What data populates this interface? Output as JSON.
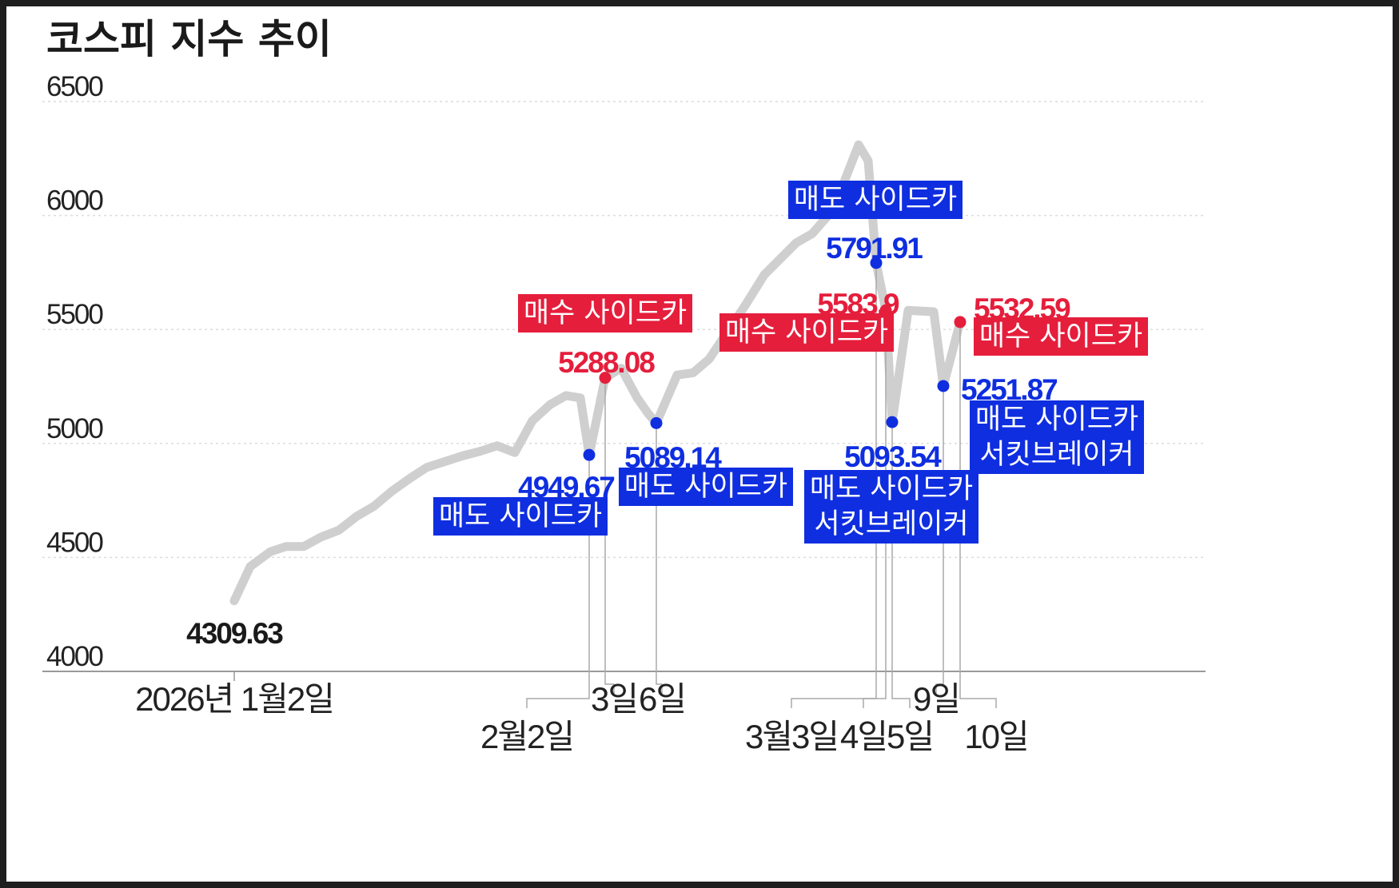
{
  "chart_data": {
    "type": "line",
    "title": "코스피 지수 추이",
    "ylim": [
      4000,
      6500
    ],
    "yticks": [
      "6500",
      "6000",
      "5500",
      "5000",
      "4500",
      "4000"
    ],
    "grid": true,
    "colors": {
      "line": "#cfcfcf",
      "sell": "#0f2ee0",
      "buy": "#e51e3c",
      "start": "#1a1a1a"
    },
    "series": [
      {
        "name": "코스피",
        "values": [
          4309.63,
          4460,
          4525,
          4548,
          4548,
          4590,
          4620,
          4680,
          4725,
          4790,
          4845,
          4895,
          4920,
          4945,
          4965,
          4990,
          4960,
          5100,
          5170,
          5210,
          5200,
          4949.67,
          5288.08,
          5330,
          5200,
          5130,
          5089.14,
          5300,
          5310,
          5370,
          5490,
          5610,
          5740,
          5810,
          5880,
          5920,
          6000,
          6130,
          6310,
          6240,
          5791.91,
          5583.9,
          5093.54,
          5583.9,
          5580,
          5578,
          5251.87,
          5532.59
        ]
      }
    ],
    "x_labels": [
      {
        "text": "2026년 1월2일",
        "index": 0,
        "row": 1,
        "anchor": "middle"
      },
      {
        "text": "2월2일",
        "index": 21,
        "row": 2,
        "anchor": "middle"
      },
      {
        "text": "3일",
        "index": 22,
        "row": 1,
        "anchor": "middle"
      },
      {
        "text": "6일",
        "index": 26,
        "row": 1,
        "anchor": "middle"
      },
      {
        "text": "3월3일",
        "index": 40,
        "row": 2,
        "anchor": "middle"
      },
      {
        "text": "4일",
        "index": 41,
        "row": 2,
        "anchor": "middle"
      },
      {
        "text": "5일",
        "index": 42,
        "row": 2,
        "anchor": "middle"
      },
      {
        "text": "9일",
        "index": 46,
        "row": 1,
        "anchor": "middle"
      },
      {
        "text": "10일",
        "index": 47,
        "row": 2,
        "anchor": "middle"
      }
    ],
    "annotations": [
      {
        "index": 0,
        "value": "4309.63",
        "type": "start",
        "labels": []
      },
      {
        "index": 21,
        "value": "4949.67",
        "type": "sell",
        "labels": [
          "매도 사이드카"
        ]
      },
      {
        "index": 22,
        "value": "5288.08",
        "type": "buy",
        "labels": [
          "매수 사이드카"
        ]
      },
      {
        "index": 26,
        "value": "5089.14",
        "type": "sell",
        "labels": [
          "매도 사이드카"
        ]
      },
      {
        "index": 40,
        "value": "5791.91",
        "type": "sell",
        "labels": [
          "매도 사이드카"
        ]
      },
      {
        "index": 41,
        "value": "5583.9",
        "type": "buy",
        "labels": [
          "매수 사이드카"
        ]
      },
      {
        "index": 42,
        "value": "5093.54",
        "type": "sell",
        "labels": [
          "매도 사이드카",
          "서킷브레이커"
        ]
      },
      {
        "index": 46,
        "value": "5251.87",
        "type": "sell",
        "labels": [
          "매도 사이드카",
          "서킷브레이커"
        ]
      },
      {
        "index": 47,
        "value": "5532.59",
        "type": "buy",
        "labels": [
          "매수 사이드카"
        ]
      }
    ]
  }
}
